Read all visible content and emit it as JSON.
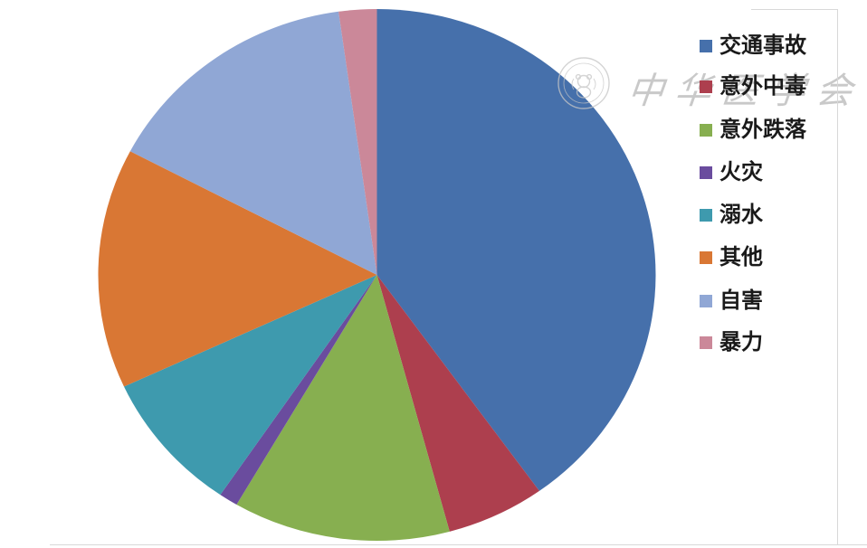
{
  "chart_data": {
    "type": "pie",
    "title": "",
    "legend_position": "right",
    "start_angle_deg": 0,
    "direction": "clockwise",
    "unit": "percent",
    "slices": [
      {
        "label": "交通事故",
        "value": 40.1,
        "color": "#4670AB"
      },
      {
        "label": "意外中毒",
        "value": 5.7,
        "color": "#AD3F4E"
      },
      {
        "label": "意外跌落",
        "value": 12.6,
        "color": "#87AF50"
      },
      {
        "label": "火灾",
        "value": 1.1,
        "color": "#6A4C9E"
      },
      {
        "label": "溺水",
        "value": 8.6,
        "color": "#3E9AAE"
      },
      {
        "label": "其他",
        "value": 14.6,
        "color": "#D97734"
      },
      {
        "label": "自害",
        "value": 15.1,
        "color": "#90A7D5"
      },
      {
        "label": "暴力",
        "value": 2.2,
        "color": "#CB8899"
      }
    ]
  },
  "watermark": {
    "text": "中华医学会"
  }
}
